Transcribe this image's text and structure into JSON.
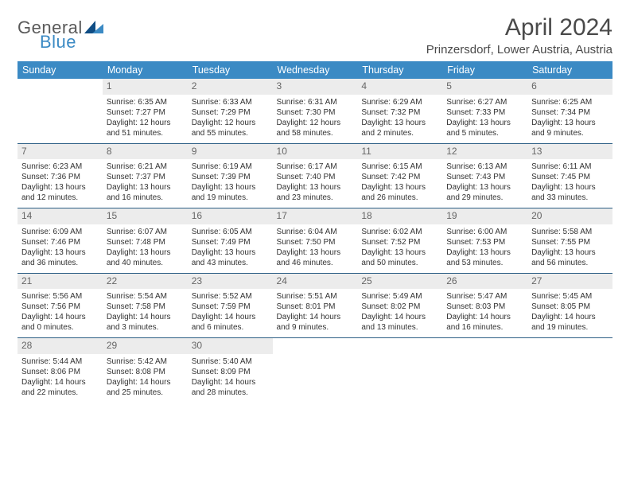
{
  "logo": {
    "word1": "General",
    "word2": "Blue"
  },
  "title": "April 2024",
  "location": "Prinzersdorf, Lower Austria, Austria",
  "colors": {
    "header_bg": "#3b8ac4",
    "header_text": "#ffffff",
    "row_border": "#2d5f85",
    "daynum_bg": "#ececec",
    "daynum_text": "#666666",
    "body_text": "#323232",
    "logo_gray": "#5a5a5a",
    "logo_blue": "#3b8ac4",
    "triangle_dark": "#0f4d84",
    "triangle_light": "#3b8ac4"
  },
  "weekdays": [
    "Sunday",
    "Monday",
    "Tuesday",
    "Wednesday",
    "Thursday",
    "Friday",
    "Saturday"
  ],
  "weeks": [
    [
      {
        "n": "",
        "sr": "",
        "ss": "",
        "dl": ""
      },
      {
        "n": "1",
        "sr": "Sunrise: 6:35 AM",
        "ss": "Sunset: 7:27 PM",
        "dl": "Daylight: 12 hours and 51 minutes."
      },
      {
        "n": "2",
        "sr": "Sunrise: 6:33 AM",
        "ss": "Sunset: 7:29 PM",
        "dl": "Daylight: 12 hours and 55 minutes."
      },
      {
        "n": "3",
        "sr": "Sunrise: 6:31 AM",
        "ss": "Sunset: 7:30 PM",
        "dl": "Daylight: 12 hours and 58 minutes."
      },
      {
        "n": "4",
        "sr": "Sunrise: 6:29 AM",
        "ss": "Sunset: 7:32 PM",
        "dl": "Daylight: 13 hours and 2 minutes."
      },
      {
        "n": "5",
        "sr": "Sunrise: 6:27 AM",
        "ss": "Sunset: 7:33 PM",
        "dl": "Daylight: 13 hours and 5 minutes."
      },
      {
        "n": "6",
        "sr": "Sunrise: 6:25 AM",
        "ss": "Sunset: 7:34 PM",
        "dl": "Daylight: 13 hours and 9 minutes."
      }
    ],
    [
      {
        "n": "7",
        "sr": "Sunrise: 6:23 AM",
        "ss": "Sunset: 7:36 PM",
        "dl": "Daylight: 13 hours and 12 minutes."
      },
      {
        "n": "8",
        "sr": "Sunrise: 6:21 AM",
        "ss": "Sunset: 7:37 PM",
        "dl": "Daylight: 13 hours and 16 minutes."
      },
      {
        "n": "9",
        "sr": "Sunrise: 6:19 AM",
        "ss": "Sunset: 7:39 PM",
        "dl": "Daylight: 13 hours and 19 minutes."
      },
      {
        "n": "10",
        "sr": "Sunrise: 6:17 AM",
        "ss": "Sunset: 7:40 PM",
        "dl": "Daylight: 13 hours and 23 minutes."
      },
      {
        "n": "11",
        "sr": "Sunrise: 6:15 AM",
        "ss": "Sunset: 7:42 PM",
        "dl": "Daylight: 13 hours and 26 minutes."
      },
      {
        "n": "12",
        "sr": "Sunrise: 6:13 AM",
        "ss": "Sunset: 7:43 PM",
        "dl": "Daylight: 13 hours and 29 minutes."
      },
      {
        "n": "13",
        "sr": "Sunrise: 6:11 AM",
        "ss": "Sunset: 7:45 PM",
        "dl": "Daylight: 13 hours and 33 minutes."
      }
    ],
    [
      {
        "n": "14",
        "sr": "Sunrise: 6:09 AM",
        "ss": "Sunset: 7:46 PM",
        "dl": "Daylight: 13 hours and 36 minutes."
      },
      {
        "n": "15",
        "sr": "Sunrise: 6:07 AM",
        "ss": "Sunset: 7:48 PM",
        "dl": "Daylight: 13 hours and 40 minutes."
      },
      {
        "n": "16",
        "sr": "Sunrise: 6:05 AM",
        "ss": "Sunset: 7:49 PM",
        "dl": "Daylight: 13 hours and 43 minutes."
      },
      {
        "n": "17",
        "sr": "Sunrise: 6:04 AM",
        "ss": "Sunset: 7:50 PM",
        "dl": "Daylight: 13 hours and 46 minutes."
      },
      {
        "n": "18",
        "sr": "Sunrise: 6:02 AM",
        "ss": "Sunset: 7:52 PM",
        "dl": "Daylight: 13 hours and 50 minutes."
      },
      {
        "n": "19",
        "sr": "Sunrise: 6:00 AM",
        "ss": "Sunset: 7:53 PM",
        "dl": "Daylight: 13 hours and 53 minutes."
      },
      {
        "n": "20",
        "sr": "Sunrise: 5:58 AM",
        "ss": "Sunset: 7:55 PM",
        "dl": "Daylight: 13 hours and 56 minutes."
      }
    ],
    [
      {
        "n": "21",
        "sr": "Sunrise: 5:56 AM",
        "ss": "Sunset: 7:56 PM",
        "dl": "Daylight: 14 hours and 0 minutes."
      },
      {
        "n": "22",
        "sr": "Sunrise: 5:54 AM",
        "ss": "Sunset: 7:58 PM",
        "dl": "Daylight: 14 hours and 3 minutes."
      },
      {
        "n": "23",
        "sr": "Sunrise: 5:52 AM",
        "ss": "Sunset: 7:59 PM",
        "dl": "Daylight: 14 hours and 6 minutes."
      },
      {
        "n": "24",
        "sr": "Sunrise: 5:51 AM",
        "ss": "Sunset: 8:01 PM",
        "dl": "Daylight: 14 hours and 9 minutes."
      },
      {
        "n": "25",
        "sr": "Sunrise: 5:49 AM",
        "ss": "Sunset: 8:02 PM",
        "dl": "Daylight: 14 hours and 13 minutes."
      },
      {
        "n": "26",
        "sr": "Sunrise: 5:47 AM",
        "ss": "Sunset: 8:03 PM",
        "dl": "Daylight: 14 hours and 16 minutes."
      },
      {
        "n": "27",
        "sr": "Sunrise: 5:45 AM",
        "ss": "Sunset: 8:05 PM",
        "dl": "Daylight: 14 hours and 19 minutes."
      }
    ],
    [
      {
        "n": "28",
        "sr": "Sunrise: 5:44 AM",
        "ss": "Sunset: 8:06 PM",
        "dl": "Daylight: 14 hours and 22 minutes."
      },
      {
        "n": "29",
        "sr": "Sunrise: 5:42 AM",
        "ss": "Sunset: 8:08 PM",
        "dl": "Daylight: 14 hours and 25 minutes."
      },
      {
        "n": "30",
        "sr": "Sunrise: 5:40 AM",
        "ss": "Sunset: 8:09 PM",
        "dl": "Daylight: 14 hours and 28 minutes."
      },
      {
        "n": "",
        "sr": "",
        "ss": "",
        "dl": ""
      },
      {
        "n": "",
        "sr": "",
        "ss": "",
        "dl": ""
      },
      {
        "n": "",
        "sr": "",
        "ss": "",
        "dl": ""
      },
      {
        "n": "",
        "sr": "",
        "ss": "",
        "dl": ""
      }
    ]
  ]
}
